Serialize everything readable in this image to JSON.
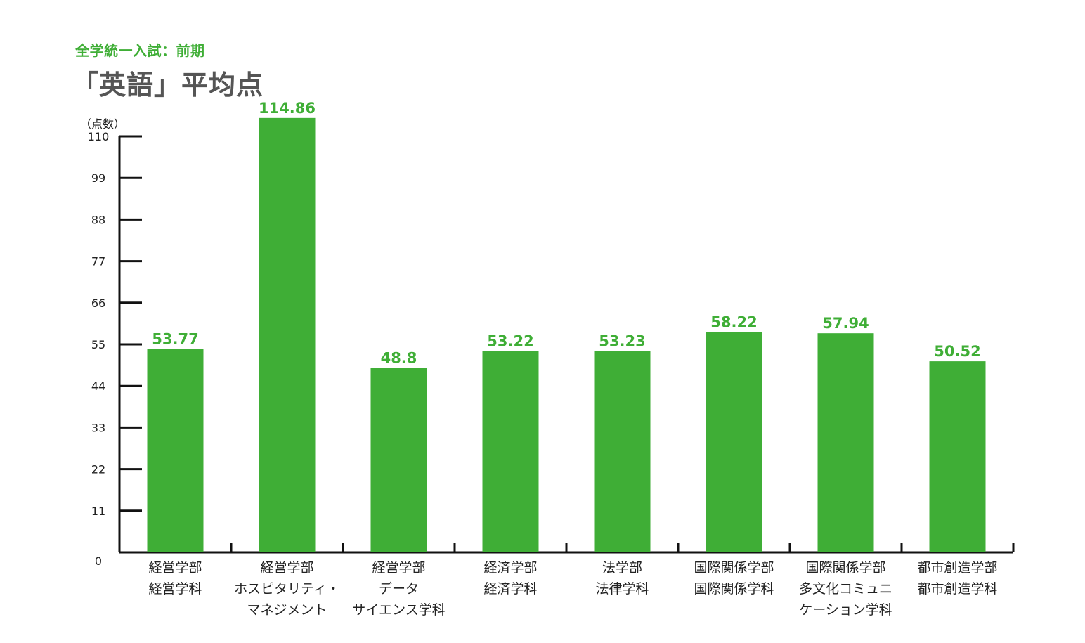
{
  "header": {
    "subtitle": "全学統一入試：前期",
    "title": "「英語」平均点"
  },
  "colors": {
    "bar": "#3fae36",
    "value_label": "#3fae36",
    "axis": "#111111",
    "text": "#222222"
  },
  "chart_data": {
    "type": "bar",
    "title": "「英語」平均点",
    "subtitle": "全学統一入試：前期",
    "ylabel": "（点数）",
    "xlabel": "",
    "ylim": [
      0,
      110
    ],
    "yticks": [
      0,
      11,
      22,
      33,
      44,
      55,
      66,
      77,
      88,
      99,
      110
    ],
    "grid": false,
    "legend": "none",
    "categories": [
      [
        "経営学部",
        "経営学科"
      ],
      [
        "経営学部",
        "ホスピタリティ・",
        "マネジメント"
      ],
      [
        "経営学部",
        "データ",
        "サイエンス学科"
      ],
      [
        "経済学部",
        "経済学科"
      ],
      [
        "法学部",
        "法律学科"
      ],
      [
        "国際関係学部",
        "国際関係学科"
      ],
      [
        "国際関係学部",
        "多文化コミュニ",
        "ケーション学科"
      ],
      [
        "都市創造学部",
        "都市創造学科"
      ]
    ],
    "values": [
      53.77,
      114.86,
      48.8,
      53.22,
      53.23,
      58.22,
      57.94,
      50.52
    ],
    "value_labels": [
      "53.77",
      "114.86",
      "48.8",
      "53.22",
      "53.23",
      "58.22",
      "57.94",
      "50.52"
    ]
  }
}
